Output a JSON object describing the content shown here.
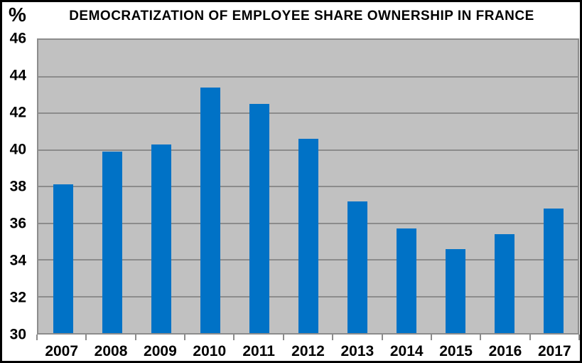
{
  "chart_data": {
    "type": "bar",
    "title": "DEMOCRATIZATION OF EMPLOYEE SHARE OWNERSHIP IN FRANCE",
    "ylabel": "%",
    "xlabel": "",
    "categories": [
      "2007",
      "2008",
      "2009",
      "2010",
      "2011",
      "2012",
      "2013",
      "2014",
      "2015",
      "2016",
      "2017"
    ],
    "values": [
      38.1,
      39.9,
      40.3,
      43.4,
      42.5,
      40.6,
      37.2,
      35.7,
      34.6,
      35.4,
      36.8
    ],
    "ylim": [
      30,
      46
    ],
    "yticks": [
      30,
      32,
      34,
      36,
      38,
      40,
      42,
      44,
      46
    ],
    "grid": true,
    "legend": "none",
    "colors": {
      "bar": "#0072C6",
      "plot_background": "#C1C1C1",
      "gridline": "#8C8C8C",
      "chart_background": "#FFFFFF",
      "outer_border": "#000000",
      "text": "#000000"
    }
  }
}
